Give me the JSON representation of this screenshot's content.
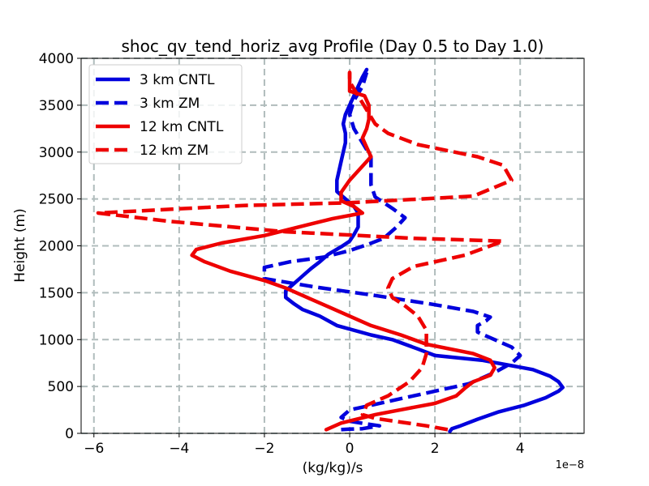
{
  "chart_data": {
    "type": "line",
    "title": "shoc_qv_tend_horiz_avg Profile (Day 0.5 to Day 1.0)",
    "xlabel": "(kg/kg)/s",
    "ylabel": "Height (m)",
    "x_offset_label": "1e−8",
    "xlim": [
      -6.3,
      5.5
    ],
    "ylim": [
      0,
      4000
    ],
    "xticks": [
      -6,
      -4,
      -2,
      0,
      2,
      4
    ],
    "xtick_labels": [
      "−6",
      "−4",
      "−2",
      "0",
      "2",
      "4"
    ],
    "yticks": [
      0,
      500,
      1000,
      1500,
      2000,
      2500,
      3000,
      3500,
      4000
    ],
    "ytick_labels": [
      "0",
      "500",
      "1000",
      "1500",
      "2000",
      "2500",
      "3000",
      "3500",
      "4000"
    ],
    "grid": true,
    "legend_position": "top-left",
    "series": [
      {
        "name": "3 km CNTL",
        "color": "#0000dd",
        "dash": "solid",
        "points": [
          [
            2.35,
            20
          ],
          [
            2.4,
            50
          ],
          [
            2.6,
            80
          ],
          [
            3.0,
            150
          ],
          [
            3.5,
            230
          ],
          [
            4.1,
            300
          ],
          [
            4.6,
            380
          ],
          [
            4.9,
            450
          ],
          [
            5.0,
            490
          ],
          [
            4.9,
            550
          ],
          [
            4.7,
            610
          ],
          [
            4.3,
            680
          ],
          [
            3.7,
            730
          ],
          [
            3.1,
            780
          ],
          [
            2.0,
            830
          ],
          [
            1.6,
            900
          ],
          [
            1.0,
            1000
          ],
          [
            0.5,
            1050
          ],
          [
            -0.3,
            1150
          ],
          [
            -0.7,
            1250
          ],
          [
            -1.1,
            1320
          ],
          [
            -1.3,
            1380
          ],
          [
            -1.5,
            1450
          ],
          [
            -1.5,
            1520
          ],
          [
            -1.3,
            1600
          ],
          [
            -1.1,
            1680
          ],
          [
            -0.9,
            1760
          ],
          [
            -0.7,
            1830
          ],
          [
            -0.5,
            1910
          ],
          [
            -0.2,
            1990
          ],
          [
            0.0,
            2050
          ],
          [
            0.1,
            2120
          ],
          [
            0.2,
            2200
          ],
          [
            0.2,
            2300
          ],
          [
            0.2,
            2350
          ],
          [
            0.1,
            2420
          ],
          [
            -0.1,
            2500
          ],
          [
            -0.3,
            2580
          ],
          [
            -0.3,
            2700
          ],
          [
            -0.25,
            2800
          ],
          [
            -0.2,
            2900
          ],
          [
            -0.15,
            3000
          ],
          [
            -0.1,
            3100
          ],
          [
            -0.1,
            3200
          ],
          [
            -0.15,
            3300
          ],
          [
            -0.1,
            3400
          ],
          [
            0.0,
            3500
          ],
          [
            0.1,
            3600
          ],
          [
            0.2,
            3700
          ],
          [
            0.3,
            3800
          ],
          [
            0.4,
            3880
          ]
        ]
      },
      {
        "name": "3 km ZM",
        "color": "#0000dd",
        "dash": "dashed",
        "points": [
          [
            -0.2,
            40
          ],
          [
            0.0,
            45
          ],
          [
            0.3,
            50
          ],
          [
            0.7,
            80
          ],
          [
            0.4,
            100
          ],
          [
            0.0,
            130
          ],
          [
            -0.2,
            170
          ],
          [
            0.0,
            250
          ],
          [
            0.5,
            300
          ],
          [
            1.5,
            400
          ],
          [
            2.8,
            530
          ],
          [
            3.4,
            650
          ],
          [
            3.8,
            750
          ],
          [
            4.0,
            830
          ],
          [
            3.8,
            920
          ],
          [
            3.4,
            1000
          ],
          [
            3.0,
            1080
          ],
          [
            3.0,
            1150
          ],
          [
            3.2,
            1200
          ],
          [
            3.3,
            1240
          ],
          [
            2.9,
            1300
          ],
          [
            1.9,
            1380
          ],
          [
            0.6,
            1470
          ],
          [
            -0.8,
            1560
          ],
          [
            -2.0,
            1650
          ],
          [
            -2.0,
            1770
          ],
          [
            -1.4,
            1830
          ],
          [
            -0.6,
            1880
          ],
          [
            0.0,
            1950
          ],
          [
            0.4,
            2010
          ],
          [
            0.8,
            2080
          ],
          [
            1.1,
            2200
          ],
          [
            1.3,
            2300
          ],
          [
            1.0,
            2400
          ],
          [
            0.6,
            2520
          ],
          [
            0.5,
            2650
          ],
          [
            0.5,
            2800
          ],
          [
            0.5,
            2950
          ],
          [
            0.3,
            3100
          ],
          [
            0.1,
            3250
          ],
          [
            0.0,
            3400
          ],
          [
            0.1,
            3550
          ],
          [
            0.3,
            3700
          ],
          [
            0.4,
            3850
          ]
        ]
      },
      {
        "name": "12 km CNTL",
        "color": "#ee0000",
        "dash": "solid",
        "points": [
          [
            -0.55,
            40
          ],
          [
            -0.2,
            110
          ],
          [
            0.6,
            200
          ],
          [
            1.3,
            260
          ],
          [
            2.0,
            320
          ],
          [
            2.5,
            400
          ],
          [
            2.7,
            480
          ],
          [
            2.9,
            550
          ],
          [
            3.3,
            620
          ],
          [
            3.4,
            700
          ],
          [
            3.3,
            780
          ],
          [
            2.9,
            850
          ],
          [
            1.8,
            950
          ],
          [
            1.2,
            1050
          ],
          [
            0.5,
            1150
          ],
          [
            0.0,
            1250
          ],
          [
            -0.5,
            1350
          ],
          [
            -1.0,
            1450
          ],
          [
            -1.5,
            1550
          ],
          [
            -2.0,
            1630
          ],
          [
            -2.8,
            1730
          ],
          [
            -3.4,
            1830
          ],
          [
            -3.7,
            1900
          ],
          [
            -3.6,
            1960
          ],
          [
            -3.0,
            2030
          ],
          [
            -2.0,
            2110
          ],
          [
            -1.2,
            2200
          ],
          [
            -0.4,
            2290
          ],
          [
            0.3,
            2350
          ],
          [
            0.1,
            2420
          ],
          [
            -0.2,
            2480
          ],
          [
            -0.2,
            2570
          ],
          [
            0.0,
            2700
          ],
          [
            0.3,
            2850
          ],
          [
            0.5,
            2950
          ],
          [
            0.4,
            3050
          ],
          [
            0.3,
            3150
          ],
          [
            0.4,
            3250
          ],
          [
            0.45,
            3350
          ],
          [
            0.45,
            3500
          ],
          [
            0.35,
            3600
          ],
          [
            0.0,
            3650
          ],
          [
            0.0,
            3750
          ],
          [
            0.0,
            3850
          ]
        ]
      },
      {
        "name": "12 km ZM",
        "color": "#ee0000",
        "dash": "dashed",
        "points": [
          [
            2.3,
            40
          ],
          [
            1.8,
            80
          ],
          [
            1.2,
            120
          ],
          [
            0.6,
            160
          ],
          [
            0.3,
            200
          ],
          [
            0.4,
            300
          ],
          [
            0.9,
            400
          ],
          [
            1.4,
            550
          ],
          [
            1.7,
            700
          ],
          [
            1.8,
            850
          ],
          [
            1.8,
            1000
          ],
          [
            1.8,
            1100
          ],
          [
            1.6,
            1250
          ],
          [
            1.3,
            1360
          ],
          [
            1.0,
            1450
          ],
          [
            0.9,
            1550
          ],
          [
            1.0,
            1650
          ],
          [
            1.5,
            1780
          ],
          [
            2.7,
            1900
          ],
          [
            3.6,
            2050
          ],
          [
            1.5,
            2080
          ],
          [
            -1.5,
            2150
          ],
          [
            -4.2,
            2260
          ],
          [
            -5.9,
            2350
          ],
          [
            -2.5,
            2430
          ],
          [
            0.0,
            2460
          ],
          [
            2.9,
            2530
          ],
          [
            3.8,
            2700
          ],
          [
            3.6,
            2860
          ],
          [
            3.0,
            2950
          ],
          [
            1.6,
            3080
          ],
          [
            0.9,
            3200
          ],
          [
            0.6,
            3300
          ],
          [
            0.4,
            3450
          ],
          [
            0.2,
            3600
          ],
          [
            0.0,
            3750
          ],
          [
            0.0,
            3850
          ]
        ]
      }
    ]
  }
}
